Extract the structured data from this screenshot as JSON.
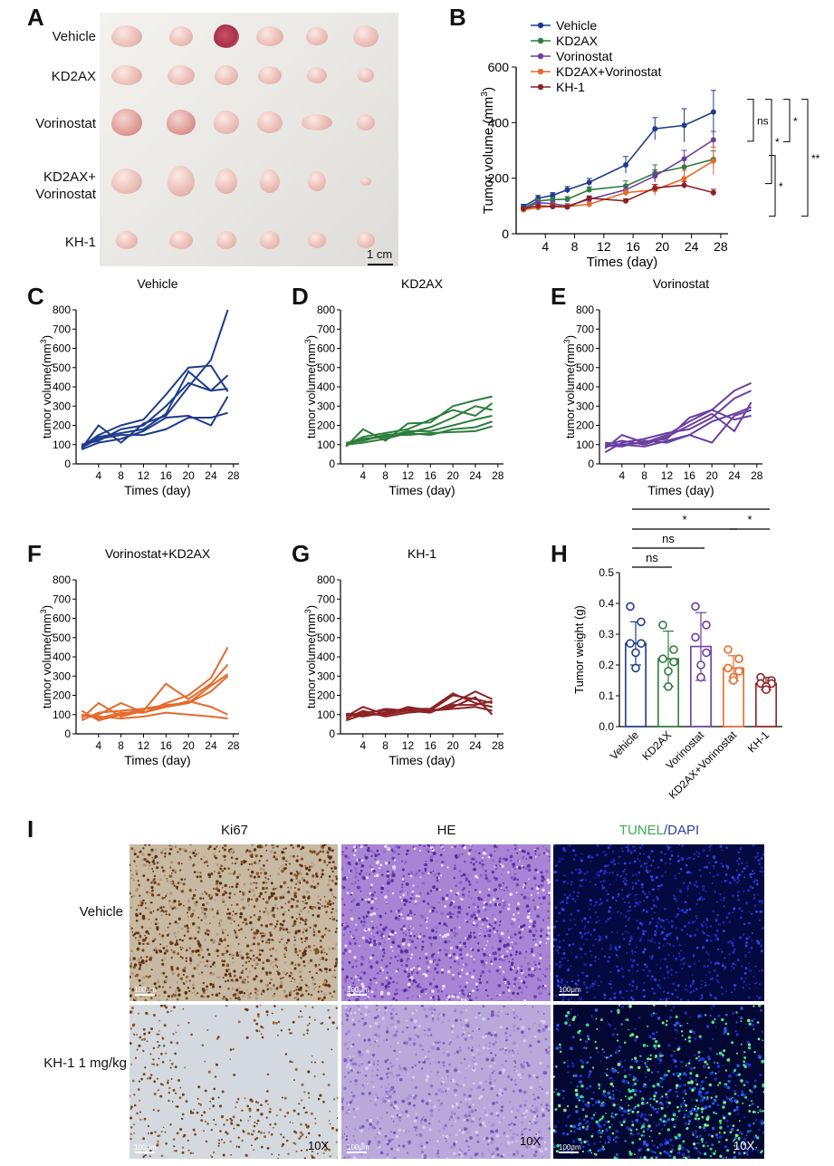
{
  "panels": {
    "a": "A",
    "b": "B",
    "c": "C",
    "d": "D",
    "e": "E",
    "f": "F",
    "g": "G",
    "h": "H",
    "i": "I"
  },
  "photo_a": {
    "rows": [
      "Vehicle",
      "KD2AX",
      "Vorinostat",
      "KD2AX+\nVorinostat",
      "KH-1"
    ],
    "scale_label": "1 cm"
  },
  "chart_data": [
    {
      "id": "B",
      "type": "line",
      "xlabel": "Times (day)",
      "ylabel": "Tumor volume (mm³)",
      "xlim": [
        0,
        29
      ],
      "ylim": [
        0,
        600
      ],
      "xticks": [
        4,
        8,
        12,
        16,
        20,
        24,
        28
      ],
      "yticks": [
        0,
        200,
        400,
        600
      ],
      "legend_position": "top-left",
      "series": [
        {
          "name": "Vehicle",
          "color": "#1f3b8c",
          "x": [
            1,
            3,
            5,
            7,
            10,
            15,
            19,
            23,
            27
          ],
          "y": [
            98,
            128,
            138,
            158,
            185,
            248,
            378,
            390,
            438
          ],
          "err": [
            8,
            10,
            10,
            12,
            14,
            30,
            40,
            60,
            78
          ]
        },
        {
          "name": "KD2AX",
          "color": "#2e7d3e",
          "x": [
            1,
            3,
            5,
            7,
            10,
            15,
            19,
            23,
            27
          ],
          "y": [
            92,
            118,
            123,
            124,
            158,
            172,
            218,
            240,
            268
          ],
          "err": [
            6,
            8,
            8,
            10,
            10,
            18,
            30,
            30,
            30
          ]
        },
        {
          "name": "Vorinostat",
          "color": "#6b3fa0",
          "x": [
            1,
            3,
            5,
            7,
            10,
            15,
            19,
            23,
            27
          ],
          "y": [
            88,
            112,
            108,
            100,
            124,
            158,
            208,
            270,
            338
          ],
          "err": [
            6,
            8,
            8,
            8,
            10,
            15,
            22,
            30,
            30
          ]
        },
        {
          "name": "KD2AX+Vorinostat",
          "color": "#e46a2c",
          "x": [
            1,
            3,
            5,
            7,
            10,
            15,
            19,
            23,
            27
          ],
          "y": [
            86,
            94,
            100,
            98,
            106,
            148,
            158,
            198,
            262
          ],
          "err": [
            6,
            6,
            6,
            6,
            8,
            12,
            20,
            30,
            50
          ]
        },
        {
          "name": "KH-1",
          "color": "#8b2224",
          "x": [
            1,
            3,
            5,
            7,
            10,
            15,
            19,
            23,
            27
          ],
          "y": [
            90,
            100,
            98,
            96,
            128,
            118,
            165,
            175,
            148
          ],
          "err": [
            5,
            6,
            6,
            6,
            8,
            8,
            12,
            12,
            12
          ]
        }
      ],
      "significance": [
        "ns",
        "*",
        "*",
        "**",
        "*"
      ]
    },
    {
      "id": "C",
      "type": "line",
      "title": "Vehicle",
      "color": "#1f3b8c",
      "xlabel": "Times (day)",
      "ylabel": "tumor volume(mm³)",
      "xlim": [
        0,
        29
      ],
      "ylim": [
        0,
        800
      ],
      "xticks": [
        4,
        8,
        12,
        16,
        20,
        24,
        28
      ],
      "yticks": [
        0,
        100,
        200,
        300,
        400,
        500,
        600,
        700,
        800
      ],
      "x": [
        1,
        4,
        8,
        12,
        16,
        20,
        24,
        27
      ],
      "series": [
        {
          "values": [
            80,
            200,
            110,
            210,
            250,
            400,
            540,
            800
          ]
        },
        {
          "values": [
            90,
            150,
            200,
            230,
            360,
            500,
            510,
            375
          ]
        },
        {
          "values": [
            100,
            120,
            180,
            200,
            300,
            420,
            380,
            460
          ]
        },
        {
          "values": [
            75,
            110,
            130,
            170,
            240,
            250,
            200,
            350
          ]
        },
        {
          "values": [
            85,
            130,
            150,
            150,
            180,
            240,
            240,
            265
          ]
        },
        {
          "values": [
            95,
            140,
            160,
            180,
            260,
            480,
            380,
            390
          ]
        }
      ]
    },
    {
      "id": "D",
      "type": "line",
      "title": "KD2AX",
      "color": "#2e7d3e",
      "xlabel": "Times (day)",
      "ylabel": "tumor volume(mm³)",
      "xlim": [
        0,
        29
      ],
      "ylim": [
        0,
        800
      ],
      "xticks": [
        4,
        8,
        12,
        16,
        20,
        24,
        28
      ],
      "yticks": [
        0,
        100,
        200,
        300,
        400,
        500,
        600,
        700,
        800
      ],
      "x": [
        1,
        4,
        8,
        12,
        16,
        20,
        24,
        27
      ],
      "series": [
        {
          "values": [
            90,
            180,
            120,
            210,
            215,
            300,
            330,
            350
          ]
        },
        {
          "values": [
            100,
            140,
            160,
            180,
            230,
            280,
            250,
            315
          ]
        },
        {
          "values": [
            110,
            120,
            150,
            160,
            190,
            240,
            300,
            280
          ]
        },
        {
          "values": [
            95,
            130,
            140,
            170,
            170,
            200,
            230,
            250
          ]
        },
        {
          "values": [
            100,
            110,
            130,
            160,
            150,
            180,
            190,
            220
          ]
        },
        {
          "values": [
            105,
            125,
            150,
            150,
            160,
            165,
            170,
            195
          ]
        }
      ]
    },
    {
      "id": "E",
      "type": "line",
      "title": "Vorinostat",
      "color": "#6b3fa0",
      "xlabel": "Times (day)",
      "ylabel": "tumor volume(mm³)",
      "xlim": [
        0,
        29
      ],
      "ylim": [
        0,
        800
      ],
      "xticks": [
        4,
        8,
        12,
        16,
        20,
        24,
        28
      ],
      "yticks": [
        0,
        100,
        200,
        300,
        400,
        500,
        600,
        700,
        800
      ],
      "x": [
        1,
        4,
        8,
        12,
        16,
        20,
        24,
        27
      ],
      "series": [
        {
          "values": [
            80,
            150,
            110,
            150,
            220,
            280,
            380,
            420
          ]
        },
        {
          "values": [
            60,
            110,
            130,
            160,
            180,
            240,
            340,
            380
          ]
        },
        {
          "values": [
            100,
            120,
            100,
            140,
            200,
            260,
            170,
            320
          ]
        },
        {
          "values": [
            90,
            100,
            90,
            120,
            150,
            110,
            250,
            280
          ]
        },
        {
          "values": [
            110,
            100,
            110,
            130,
            240,
            280,
            230,
            250
          ]
        },
        {
          "values": [
            95,
            90,
            120,
            110,
            150,
            220,
            260,
            295
          ]
        }
      ]
    },
    {
      "id": "F",
      "type": "line",
      "title": "Vorinostat+KD2AX",
      "color": "#e46a2c",
      "xlabel": "Times (day)",
      "ylabel": "tumor volume(mm³)",
      "xlim": [
        0,
        29
      ],
      "ylim": [
        0,
        800
      ],
      "xticks": [
        4,
        8,
        12,
        16,
        20,
        24,
        28
      ],
      "yticks": [
        0,
        100,
        200,
        300,
        400,
        500,
        600,
        700,
        800
      ],
      "x": [
        1,
        4,
        8,
        12,
        16,
        20,
        24,
        27
      ],
      "series": [
        {
          "values": [
            100,
            80,
            110,
            110,
            160,
            200,
            290,
            450
          ]
        },
        {
          "values": [
            80,
            160,
            90,
            120,
            260,
            180,
            260,
            360
          ]
        },
        {
          "values": [
            90,
            100,
            160,
            110,
            140,
            160,
            250,
            310
          ]
        },
        {
          "values": [
            120,
            70,
            100,
            130,
            150,
            160,
            220,
            300
          ]
        },
        {
          "values": [
            70,
            110,
            120,
            130,
            140,
            170,
            140,
            100
          ]
        },
        {
          "values": [
            95,
            90,
            80,
            90,
            110,
            100,
            90,
            80
          ]
        }
      ]
    },
    {
      "id": "G",
      "type": "line",
      "title": "KH-1",
      "color": "#8b2224",
      "xlabel": "Times (day)",
      "ylabel": "tumor volume(mm³)",
      "xlim": [
        0,
        29
      ],
      "ylim": [
        0,
        800
      ],
      "xticks": [
        4,
        8,
        12,
        16,
        20,
        24,
        28
      ],
      "yticks": [
        0,
        100,
        200,
        300,
        400,
        500,
        600,
        700,
        800
      ],
      "x": [
        1,
        4,
        8,
        12,
        16,
        20,
        24,
        27
      ],
      "series": [
        {
          "values": [
            90,
            140,
            100,
            140,
            120,
            200,
            180,
            160
          ]
        },
        {
          "values": [
            70,
            100,
            130,
            120,
            110,
            160,
            220,
            180
          ]
        },
        {
          "values": [
            100,
            90,
            110,
            130,
            130,
            210,
            160,
            140
          ]
        },
        {
          "values": [
            80,
            120,
            90,
            110,
            120,
            140,
            190,
            100
          ]
        },
        {
          "values": [
            95,
            110,
            120,
            125,
            115,
            150,
            150,
            170
          ]
        },
        {
          "values": [
            105,
            100,
            100,
            120,
            120,
            130,
            140,
            120
          ]
        }
      ]
    },
    {
      "id": "H",
      "type": "bar",
      "ylabel": "Tumor weight (g)",
      "ylim": [
        0,
        0.5
      ],
      "yticks": [
        0.0,
        0.1,
        0.2,
        0.3,
        0.4,
        0.5
      ],
      "categories": [
        "Vehicle",
        "KD2AX",
        "Vorinostat",
        "KD2AX+Vorinostat",
        "KH-1"
      ],
      "colors": [
        "#1f3b8c",
        "#2e7d3e",
        "#6b3fa0",
        "#e46a2c",
        "#8b2224"
      ],
      "values": [
        0.27,
        0.22,
        0.26,
        0.19,
        0.14
      ],
      "sd": [
        0.07,
        0.09,
        0.11,
        0.04,
        0.02
      ],
      "points": [
        [
          0.39,
          0.34,
          0.27,
          0.27,
          0.24,
          0.19
        ],
        [
          0.33,
          0.25,
          0.22,
          0.21,
          0.18,
          0.13
        ],
        [
          0.39,
          0.33,
          0.29,
          0.24,
          0.2,
          0.16
        ],
        [
          0.25,
          0.22,
          0.19,
          0.18,
          0.16,
          0.15
        ],
        [
          0.16,
          0.15,
          0.14,
          0.14,
          0.13,
          0.12
        ]
      ],
      "significance": [
        {
          "label": "ns",
          "from": 0,
          "to": 1
        },
        {
          "label": "ns",
          "from": 0,
          "to": 2
        },
        {
          "label": "*",
          "from": 0,
          "to": 3
        },
        {
          "label": "*",
          "from": 3,
          "to": 4
        },
        {
          "label": "**",
          "from": 0,
          "to": 4
        }
      ]
    }
  ],
  "micro_i": {
    "columns": [
      "Ki67",
      "HE",
      "TUNEL/DAPI"
    ],
    "tunel_part": "TUNEL",
    "dapi_part": "/DAPI",
    "tunel_color": "#33b050",
    "dapi_color": "#2b3fa6",
    "rows": [
      "Vehicle",
      "KH-1 1 mg/kg"
    ],
    "scale_label": "100μm",
    "magnification": "10X"
  }
}
